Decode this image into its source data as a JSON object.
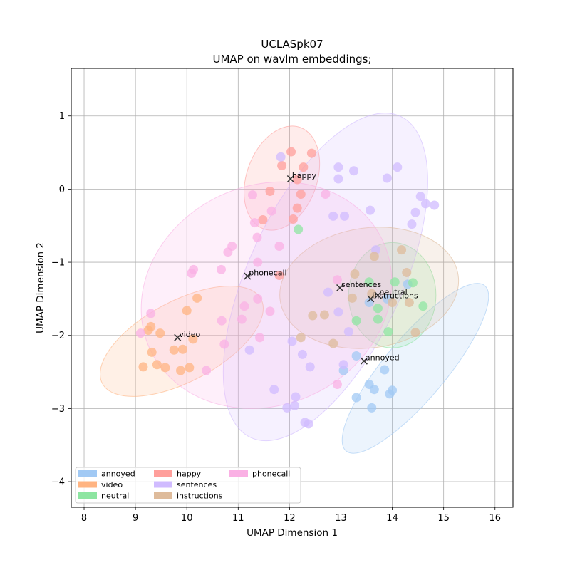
{
  "chart_data": {
    "type": "scatter",
    "title": "UCLASpk07",
    "subtitle": "UMAP on wavlm embeddings;",
    "xlabel": "UMAP Dimension 1",
    "ylabel": "UMAP Dimension 2",
    "xlim": [
      7.75,
      16.35
    ],
    "ylim": [
      -4.35,
      1.65
    ],
    "xticks": [
      8,
      9,
      10,
      11,
      12,
      13,
      14,
      15,
      16
    ],
    "yticks": [
      -4,
      -3,
      -2,
      -1,
      0,
      1
    ],
    "grid": true,
    "legend_position": "lower-left",
    "series": [
      {
        "name": "annoyed",
        "color": "#a1c9f4",
        "centroid": [
          13.45,
          -2.35
        ],
        "ellipse": {
          "cx": 14.45,
          "cy": -2.45,
          "rx": 2.1,
          "ry": 0.42,
          "angle_deg": 50
        },
        "points": [
          [
            13.3,
            -2.28
          ],
          [
            13.05,
            -2.48
          ],
          [
            13.85,
            -2.47
          ],
          [
            13.55,
            -2.67
          ],
          [
            13.65,
            -2.74
          ],
          [
            13.95,
            -2.8
          ],
          [
            14.0,
            -2.75
          ],
          [
            13.3,
            -2.85
          ],
          [
            13.6,
            -2.99
          ],
          [
            13.55,
            -1.55
          ],
          [
            13.9,
            -1.5
          ],
          [
            14.3,
            -1.3
          ]
        ]
      },
      {
        "name": "video",
        "color": "#ffb482",
        "centroid": [
          9.82,
          -2.03
        ],
        "ellipse": {
          "cx": 9.9,
          "cy": -2.08,
          "rx": 1.75,
          "ry": 0.55,
          "angle_deg": 28
        },
        "points": [
          [
            10.2,
            -1.49
          ],
          [
            10.0,
            -1.66
          ],
          [
            9.3,
            -1.88
          ],
          [
            9.25,
            -1.93
          ],
          [
            9.48,
            -1.97
          ],
          [
            10.12,
            -2.05
          ],
          [
            9.75,
            -2.2
          ],
          [
            9.92,
            -2.19
          ],
          [
            9.32,
            -2.23
          ],
          [
            9.42,
            -2.4
          ],
          [
            9.15,
            -2.43
          ],
          [
            9.58,
            -2.44
          ],
          [
            10.05,
            -2.44
          ],
          [
            9.88,
            -2.48
          ]
        ]
      },
      {
        "name": "neutral",
        "color": "#8de5a1",
        "centroid": [
          13.6,
          -1.5
        ],
        "ellipse": {
          "cx": 14.0,
          "cy": -1.45,
          "rx": 0.85,
          "ry": 0.72,
          "angle_deg": 0
        },
        "points": [
          [
            12.17,
            -0.55
          ],
          [
            13.55,
            -1.27
          ],
          [
            14.05,
            -1.27
          ],
          [
            14.4,
            -1.28
          ],
          [
            13.72,
            -1.63
          ],
          [
            14.6,
            -1.6
          ],
          [
            13.72,
            -1.78
          ],
          [
            13.3,
            -1.8
          ],
          [
            13.92,
            -1.95
          ]
        ]
      },
      {
        "name": "happy",
        "color": "#ff9f9b",
        "centroid": [
          12.02,
          0.14
        ],
        "ellipse": {
          "cx": 11.85,
          "cy": 0.15,
          "rx": 1.05,
          "ry": 0.48,
          "angle_deg": 70
        },
        "points": [
          [
            12.03,
            0.51
          ],
          [
            12.43,
            0.49
          ],
          [
            11.85,
            0.32
          ],
          [
            12.27,
            0.3
          ],
          [
            12.15,
            0.13
          ],
          [
            11.62,
            -0.03
          ],
          [
            12.22,
            -0.07
          ],
          [
            12.15,
            -0.26
          ],
          [
            12.07,
            -0.41
          ],
          [
            11.48,
            -0.42
          ],
          [
            11.8,
            -1.18
          ]
        ]
      },
      {
        "name": "sentences",
        "color": "#d0bbff",
        "centroid": [
          12.98,
          -1.35
        ],
        "ellipse": {
          "cx": 12.7,
          "cy": -1.2,
          "rx": 3.45,
          "ry": 1.05,
          "angle_deg": 65
        },
        "points": [
          [
            11.83,
            0.44
          ],
          [
            12.95,
            0.3
          ],
          [
            13.25,
            0.25
          ],
          [
            14.1,
            0.3
          ],
          [
            13.9,
            0.15
          ],
          [
            12.95,
            0.14
          ],
          [
            14.55,
            -0.1
          ],
          [
            14.65,
            -0.2
          ],
          [
            14.82,
            -0.22
          ],
          [
            14.45,
            -0.32
          ],
          [
            13.57,
            -0.29
          ],
          [
            12.85,
            -0.37
          ],
          [
            13.07,
            -0.37
          ],
          [
            14.38,
            -0.48
          ],
          [
            13.68,
            -0.83
          ],
          [
            12.75,
            -1.41
          ],
          [
            12.95,
            -1.68
          ],
          [
            13.15,
            -1.95
          ],
          [
            12.05,
            -2.08
          ],
          [
            12.25,
            -2.26
          ],
          [
            11.22,
            -2.2
          ],
          [
            12.4,
            -2.43
          ],
          [
            13.05,
            -2.4
          ],
          [
            11.7,
            -2.74
          ],
          [
            12.12,
            -2.84
          ],
          [
            12.1,
            -2.96
          ],
          [
            11.95,
            -2.99
          ],
          [
            12.3,
            -3.19
          ],
          [
            12.37,
            -3.21
          ]
        ]
      },
      {
        "name": "instructions",
        "color": "#debb9b",
        "centroid": [
          13.6,
          -1.48
        ],
        "ellipse": {
          "cx": 13.55,
          "cy": -1.35,
          "rx": 1.75,
          "ry": 0.82,
          "angle_deg": 8
        },
        "points": [
          [
            13.65,
            -0.92
          ],
          [
            14.18,
            -0.83
          ],
          [
            14.28,
            -1.14
          ],
          [
            13.27,
            -1.16
          ],
          [
            13.6,
            -1.43
          ],
          [
            13.22,
            -1.49
          ],
          [
            14.33,
            -1.55
          ],
          [
            14.0,
            -1.55
          ],
          [
            12.45,
            -1.73
          ],
          [
            12.68,
            -1.72
          ],
          [
            14.45,
            -1.96
          ],
          [
            12.22,
            -2.03
          ],
          [
            12.85,
            -2.11
          ]
        ]
      },
      {
        "name": "phonecall",
        "color": "#fab0e4",
        "centroid": [
          11.18,
          -1.19
        ],
        "ellipse": {
          "cx": 11.55,
          "cy": -1.45,
          "rx": 2.5,
          "ry": 1.5,
          "angle_deg": 25
        },
        "points": [
          [
            11.28,
            -0.08
          ],
          [
            11.65,
            -0.3
          ],
          [
            11.32,
            -0.46
          ],
          [
            12.7,
            -0.07
          ],
          [
            11.37,
            -0.66
          ],
          [
            10.88,
            -0.78
          ],
          [
            10.8,
            -0.86
          ],
          [
            11.38,
            -1.0
          ],
          [
            10.13,
            -1.1
          ],
          [
            10.09,
            -1.15
          ],
          [
            10.67,
            -1.1
          ],
          [
            11.8,
            -0.78
          ],
          [
            12.93,
            -1.24
          ],
          [
            11.38,
            -1.5
          ],
          [
            11.12,
            -1.6
          ],
          [
            11.62,
            -1.67
          ],
          [
            10.68,
            -1.8
          ],
          [
            11.07,
            -1.78
          ],
          [
            9.3,
            -1.7
          ],
          [
            9.1,
            -1.97
          ],
          [
            11.42,
            -2.03
          ],
          [
            10.73,
            -2.12
          ],
          [
            10.38,
            -2.48
          ],
          [
            12.93,
            -2.67
          ]
        ]
      }
    ],
    "annotations": [
      {
        "label": "happy",
        "x": 12.02,
        "y": 0.14
      },
      {
        "label": "phonecall",
        "x": 11.18,
        "y": -1.19
      },
      {
        "label": "sentences",
        "x": 12.98,
        "y": -1.35
      },
      {
        "label": "neutral",
        "x": 13.72,
        "y": -1.45
      },
      {
        "label": "instructions",
        "x": 13.58,
        "y": -1.5
      },
      {
        "label": "video",
        "x": 9.82,
        "y": -2.03
      },
      {
        "label": "annoyed",
        "x": 13.45,
        "y": -2.35
      }
    ]
  }
}
